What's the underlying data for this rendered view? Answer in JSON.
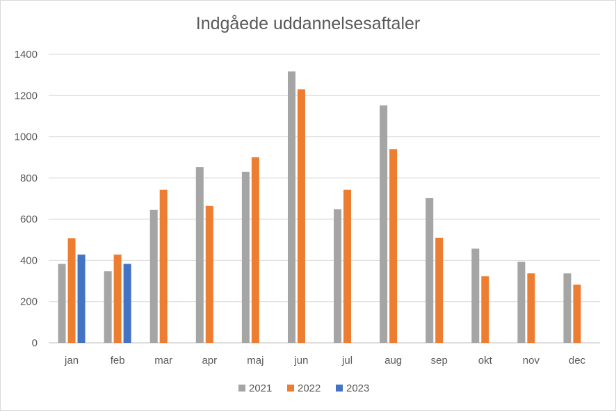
{
  "chart_data": {
    "type": "bar",
    "title": "Indgåede uddannelsesaftaler",
    "xlabel": "",
    "ylabel": "",
    "ylim": [
      0,
      1400
    ],
    "yticks": [
      0,
      200,
      400,
      600,
      800,
      1000,
      1200,
      1400
    ],
    "grid": true,
    "legend_position": "bottom",
    "categories": [
      "jan",
      "feb",
      "mar",
      "apr",
      "maj",
      "jun",
      "jul",
      "aug",
      "sep",
      "okt",
      "nov",
      "dec"
    ],
    "series": [
      {
        "name": "2021",
        "color": "#a5a5a5",
        "values": [
          383,
          347,
          645,
          853,
          830,
          1317,
          648,
          1152,
          702,
          457,
          393,
          337
        ]
      },
      {
        "name": "2022",
        "color": "#ed7d31",
        "values": [
          508,
          428,
          743,
          665,
          900,
          1230,
          743,
          940,
          510,
          323,
          337,
          282
        ]
      },
      {
        "name": "2023",
        "color": "#4472c4",
        "values": [
          428,
          383,
          null,
          null,
          null,
          null,
          null,
          null,
          null,
          null,
          null,
          null
        ]
      }
    ]
  }
}
